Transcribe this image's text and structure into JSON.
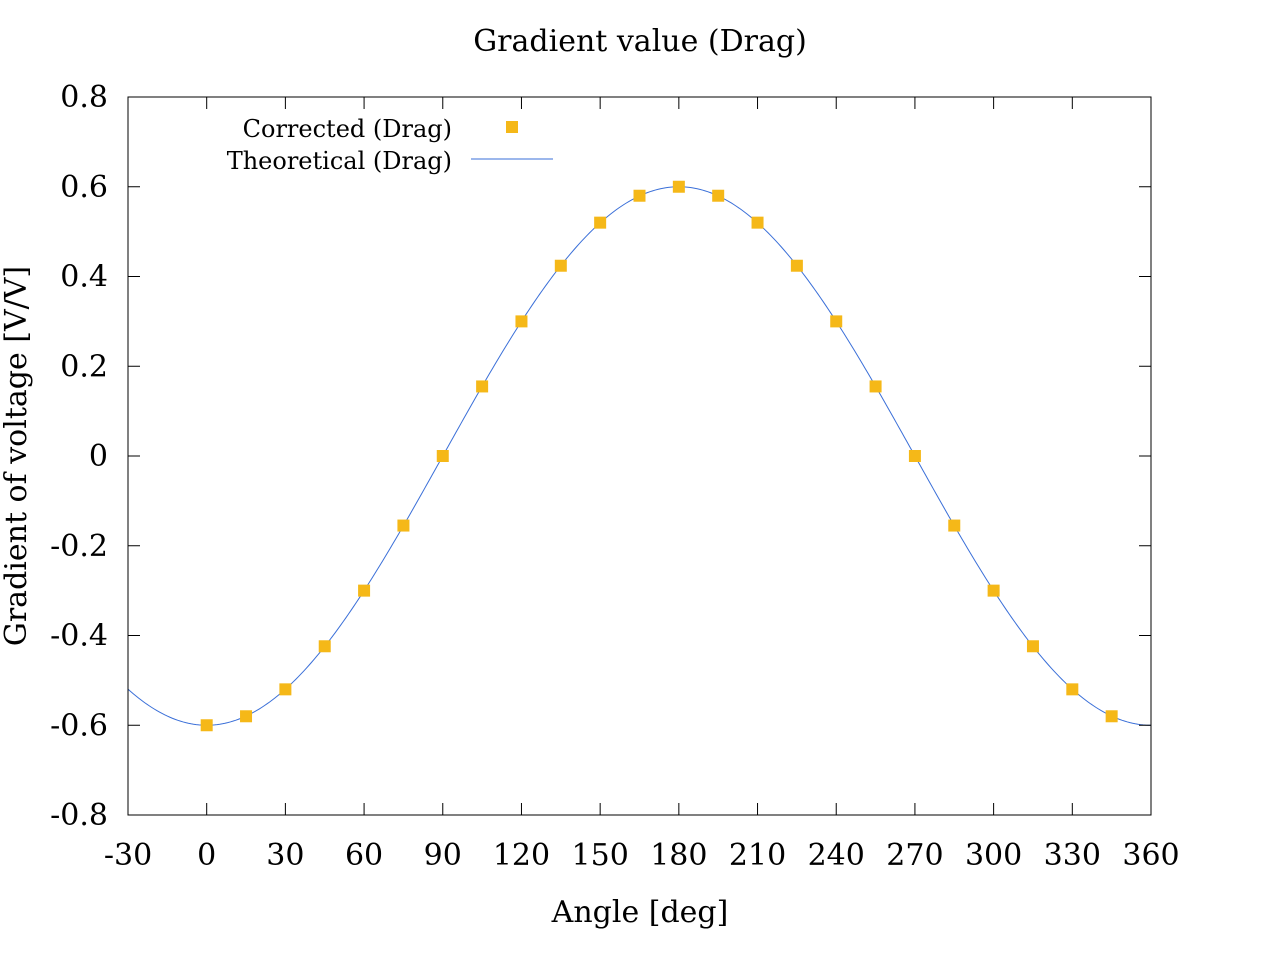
{
  "chart_data": {
    "type": "scatter",
    "title": "Gradient value (Drag)",
    "xlabel": "Angle [deg]",
    "ylabel": "Gradient of voltage [V/V]",
    "xlim": [
      -30,
      360
    ],
    "ylim": [
      -0.8,
      0.8
    ],
    "xticks": [
      -30,
      0,
      30,
      60,
      90,
      120,
      150,
      180,
      210,
      240,
      270,
      300,
      330,
      360
    ],
    "yticks": [
      0.8,
      0.6,
      0.4,
      0.2,
      0,
      -0.2,
      -0.4,
      -0.6,
      -0.8
    ],
    "xtick_labels": [
      "-30",
      "0",
      "30",
      "60",
      "90",
      "120",
      "150",
      "180",
      "210",
      "240",
      "270",
      "300",
      "330",
      "360"
    ],
    "ytick_labels": [
      "0.8",
      "0.6",
      "0.4",
      "0.2",
      "0",
      "-0.2",
      "-0.4",
      "-0.6",
      "-0.8"
    ],
    "grid": false,
    "legend_position": "top-left",
    "series": [
      {
        "name": "Corrected (Drag)",
        "kind": "points",
        "color": "#f5b818",
        "x": [
          0,
          15,
          30,
          45,
          60,
          75,
          90,
          105,
          120,
          135,
          150,
          165,
          180,
          195,
          210,
          225,
          240,
          255,
          270,
          285,
          300,
          315,
          330,
          345
        ],
        "y": [
          -0.6,
          -0.58,
          -0.52,
          -0.424,
          -0.3,
          -0.155,
          0,
          0.155,
          0.3,
          0.424,
          0.52,
          0.58,
          0.6,
          0.58,
          0.52,
          0.424,
          0.3,
          0.155,
          0,
          -0.155,
          -0.3,
          -0.424,
          -0.52,
          -0.58
        ]
      },
      {
        "name": "Theoretical (Drag)",
        "kind": "line",
        "color": "#3a6fd8",
        "function": "-0.6*cos(angle)",
        "amplitude": 0.6
      }
    ]
  }
}
